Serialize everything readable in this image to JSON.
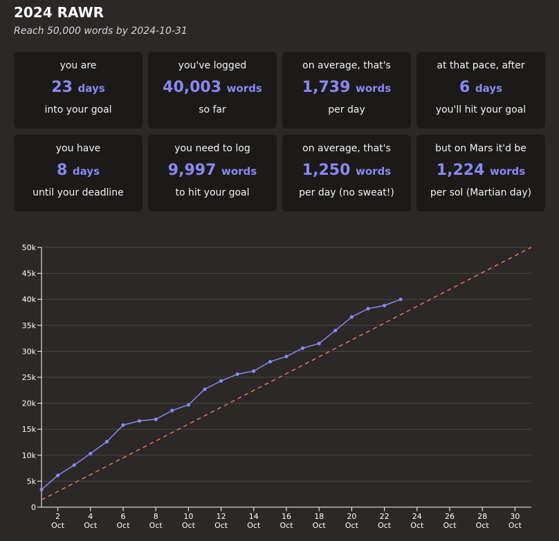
{
  "header": {
    "title": "2024 RAWR",
    "subtitle": "Reach 50,000 words by 2024-10-31"
  },
  "stats": [
    {
      "pre": "you are",
      "value": "23",
      "unit": "days",
      "post": "into your goal"
    },
    {
      "pre": "you've logged",
      "value": "40,003",
      "unit": "words",
      "post": "so far"
    },
    {
      "pre": "on average, that's",
      "value": "1,739",
      "unit": "words",
      "post": "per day"
    },
    {
      "pre": "at that pace, after",
      "value": "6",
      "unit": "days",
      "post": "you'll hit your goal"
    },
    {
      "pre": "you have",
      "value": "8",
      "unit": "days",
      "post": "until your deadline"
    },
    {
      "pre": "you need to log",
      "value": "9,997",
      "unit": "words",
      "post": "to hit your goal"
    },
    {
      "pre": "on average, that's",
      "value": "1,250",
      "unit": "words",
      "post": "per day (no sweat!)"
    },
    {
      "pre": "but on Mars it'd be",
      "value": "1,224",
      "unit": "words",
      "post": "per sol (Martian day)"
    }
  ],
  "colors": {
    "background": "#2b2827",
    "card": "#1c1a19",
    "accent": "#8a88f2",
    "target_line": "#e8736b",
    "grid": "#4a4746"
  },
  "chart_data": {
    "type": "line",
    "xlim": [
      1,
      31
    ],
    "ylim": [
      0,
      50000
    ],
    "y_ticks": [
      {
        "value": 0,
        "label": "0"
      },
      {
        "value": 5000,
        "label": "5k"
      },
      {
        "value": 10000,
        "label": "10k"
      },
      {
        "value": 15000,
        "label": "15k"
      },
      {
        "value": 20000,
        "label": "20k"
      },
      {
        "value": 25000,
        "label": "25k"
      },
      {
        "value": 30000,
        "label": "30k"
      },
      {
        "value": 35000,
        "label": "35k"
      },
      {
        "value": 40000,
        "label": "40k"
      },
      {
        "value": 45000,
        "label": "45k"
      },
      {
        "value": 50000,
        "label": "50k"
      }
    ],
    "x_ticks": [
      {
        "value": 2,
        "day": "2",
        "month": "Oct"
      },
      {
        "value": 4,
        "day": "4",
        "month": "Oct"
      },
      {
        "value": 6,
        "day": "6",
        "month": "Oct"
      },
      {
        "value": 8,
        "day": "8",
        "month": "Oct"
      },
      {
        "value": 10,
        "day": "10",
        "month": "Oct"
      },
      {
        "value": 12,
        "day": "12",
        "month": "Oct"
      },
      {
        "value": 14,
        "day": "14",
        "month": "Oct"
      },
      {
        "value": 16,
        "day": "16",
        "month": "Oct"
      },
      {
        "value": 18,
        "day": "18",
        "month": "Oct"
      },
      {
        "value": 20,
        "day": "20",
        "month": "Oct"
      },
      {
        "value": 22,
        "day": "22",
        "month": "Oct"
      },
      {
        "value": 24,
        "day": "24",
        "month": "Oct"
      },
      {
        "value": 26,
        "day": "26",
        "month": "Oct"
      },
      {
        "value": 28,
        "day": "28",
        "month": "Oct"
      },
      {
        "value": 30,
        "day": "30",
        "month": "Oct"
      }
    ],
    "grid": true,
    "series": [
      {
        "style": "solid-with-points",
        "x": [
          1,
          2,
          3,
          4,
          5,
          6,
          7,
          8,
          9,
          10,
          11,
          12,
          13,
          14,
          15,
          16,
          17,
          18,
          19,
          20,
          21,
          22,
          23
        ],
        "y": [
          3400,
          6100,
          8100,
          10300,
          12600,
          15800,
          16600,
          16900,
          18600,
          19700,
          22700,
          24300,
          25600,
          26200,
          28000,
          29000,
          30600,
          31500,
          34000,
          36600,
          38200,
          38800,
          40003
        ]
      },
      {
        "style": "dashed",
        "x": [
          1,
          31
        ],
        "y": [
          1400,
          50000
        ]
      }
    ]
  }
}
